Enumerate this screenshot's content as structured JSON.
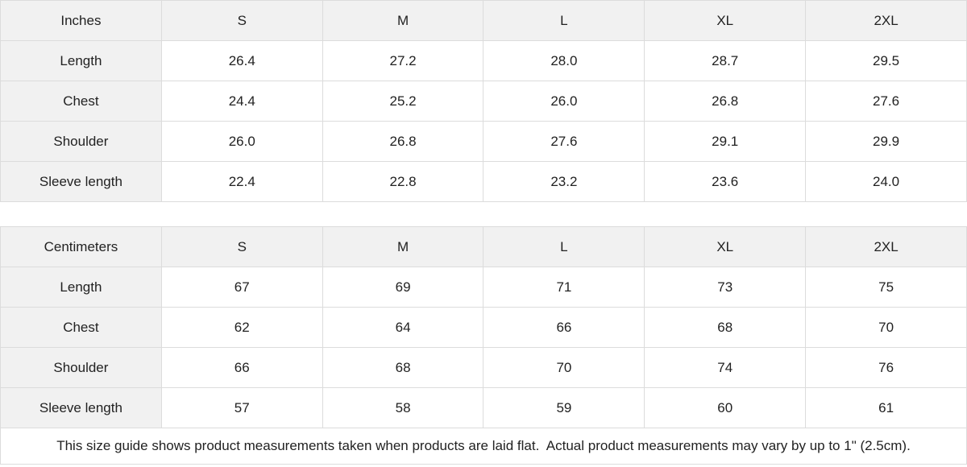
{
  "sizes": [
    "S",
    "M",
    "L",
    "XL",
    "2XL"
  ],
  "inches_table": {
    "unit_label": "Inches",
    "rows": [
      {
        "label": "Length",
        "values": [
          "26.4",
          "27.2",
          "28.0",
          "28.7",
          "29.5"
        ]
      },
      {
        "label": "Chest",
        "values": [
          "24.4",
          "25.2",
          "26.0",
          "26.8",
          "27.6"
        ]
      },
      {
        "label": "Shoulder",
        "values": [
          "26.0",
          "26.8",
          "27.6",
          "29.1",
          "29.9"
        ]
      },
      {
        "label": "Sleeve length",
        "values": [
          "22.4",
          "22.8",
          "23.2",
          "23.6",
          "24.0"
        ]
      }
    ]
  },
  "centimeters_table": {
    "unit_label": "Centimeters",
    "rows": [
      {
        "label": "Length",
        "values": [
          "67",
          "69",
          "71",
          "73",
          "75"
        ]
      },
      {
        "label": "Chest",
        "values": [
          "62",
          "64",
          "66",
          "68",
          "70"
        ]
      },
      {
        "label": "Shoulder",
        "values": [
          "66",
          "68",
          "70",
          "74",
          "76"
        ]
      },
      {
        "label": "Sleeve length",
        "values": [
          "57",
          "58",
          "59",
          "60",
          "61"
        ]
      }
    ]
  },
  "footer_note": "This size guide shows product measurements taken when products are laid flat.  Actual product measurements may vary by up to 1\" (2.5cm).",
  "colors": {
    "header_bg": "#f1f1f1",
    "border": "#dcdcdc",
    "text": "#222222"
  }
}
